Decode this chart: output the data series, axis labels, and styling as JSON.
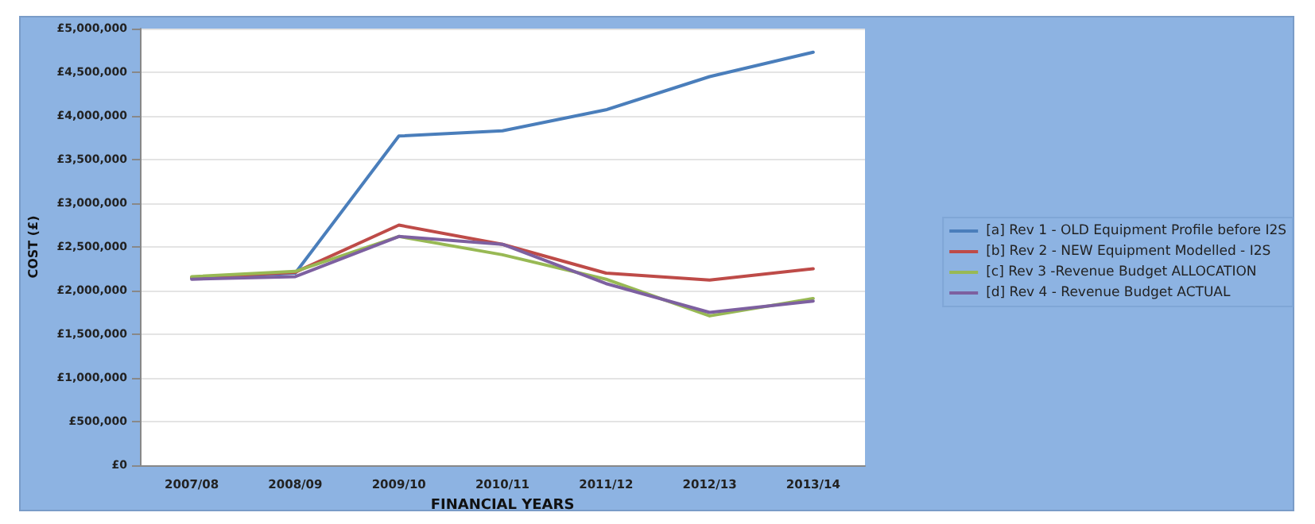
{
  "chart_data": {
    "type": "line",
    "xlabel": "FINANCIAL YEARS",
    "ylabel": "COST (£)",
    "categories": [
      "2007/08",
      "2008/09",
      "2009/10",
      "2010/11",
      "2011/12",
      "2012/13",
      "2013/14"
    ],
    "series": [
      {
        "name": "[a] Rev 1 - OLD Equipment Profile before I2S",
        "color": "#4a7ebb",
        "values": [
          2140000,
          2200000,
          3770000,
          3830000,
          4070000,
          4450000,
          4730000
        ]
      },
      {
        "name": "[b] Rev 2 - NEW Equipment Modelled - I2S",
        "color": "#be4b48",
        "values": [
          2150000,
          2210000,
          2750000,
          2530000,
          2200000,
          2120000,
          2250000
        ]
      },
      {
        "name": "[c] Rev 3 -Revenue Budget ALLOCATION",
        "color": "#98b954",
        "values": [
          2160000,
          2220000,
          2620000,
          2410000,
          2130000,
          1710000,
          1910000
        ]
      },
      {
        "name": "[d] Rev 4 - Revenue Budget ACTUAL",
        "color": "#7d60a0",
        "values": [
          2130000,
          2160000,
          2620000,
          2530000,
          2080000,
          1750000,
          1880000
        ]
      }
    ],
    "ylim": [
      0,
      5000000
    ],
    "yticks": [
      {
        "value": 0,
        "label": "£0"
      },
      {
        "value": 500000,
        "label": "£500,000"
      },
      {
        "value": 1000000,
        "label": "£1,000,000"
      },
      {
        "value": 1500000,
        "label": "£1,500,000"
      },
      {
        "value": 2000000,
        "label": "£2,000,000"
      },
      {
        "value": 2500000,
        "label": "£2,500,000"
      },
      {
        "value": 3000000,
        "label": "£3,000,000"
      },
      {
        "value": 3500000,
        "label": "£3,500,000"
      },
      {
        "value": 4000000,
        "label": "£4,000,000"
      },
      {
        "value": 4500000,
        "label": "£4,500,000"
      },
      {
        "value": 5000000,
        "label": "£5,000,000"
      }
    ],
    "grid": "y",
    "legend": "right",
    "marker": "none",
    "line_style": "solid"
  }
}
